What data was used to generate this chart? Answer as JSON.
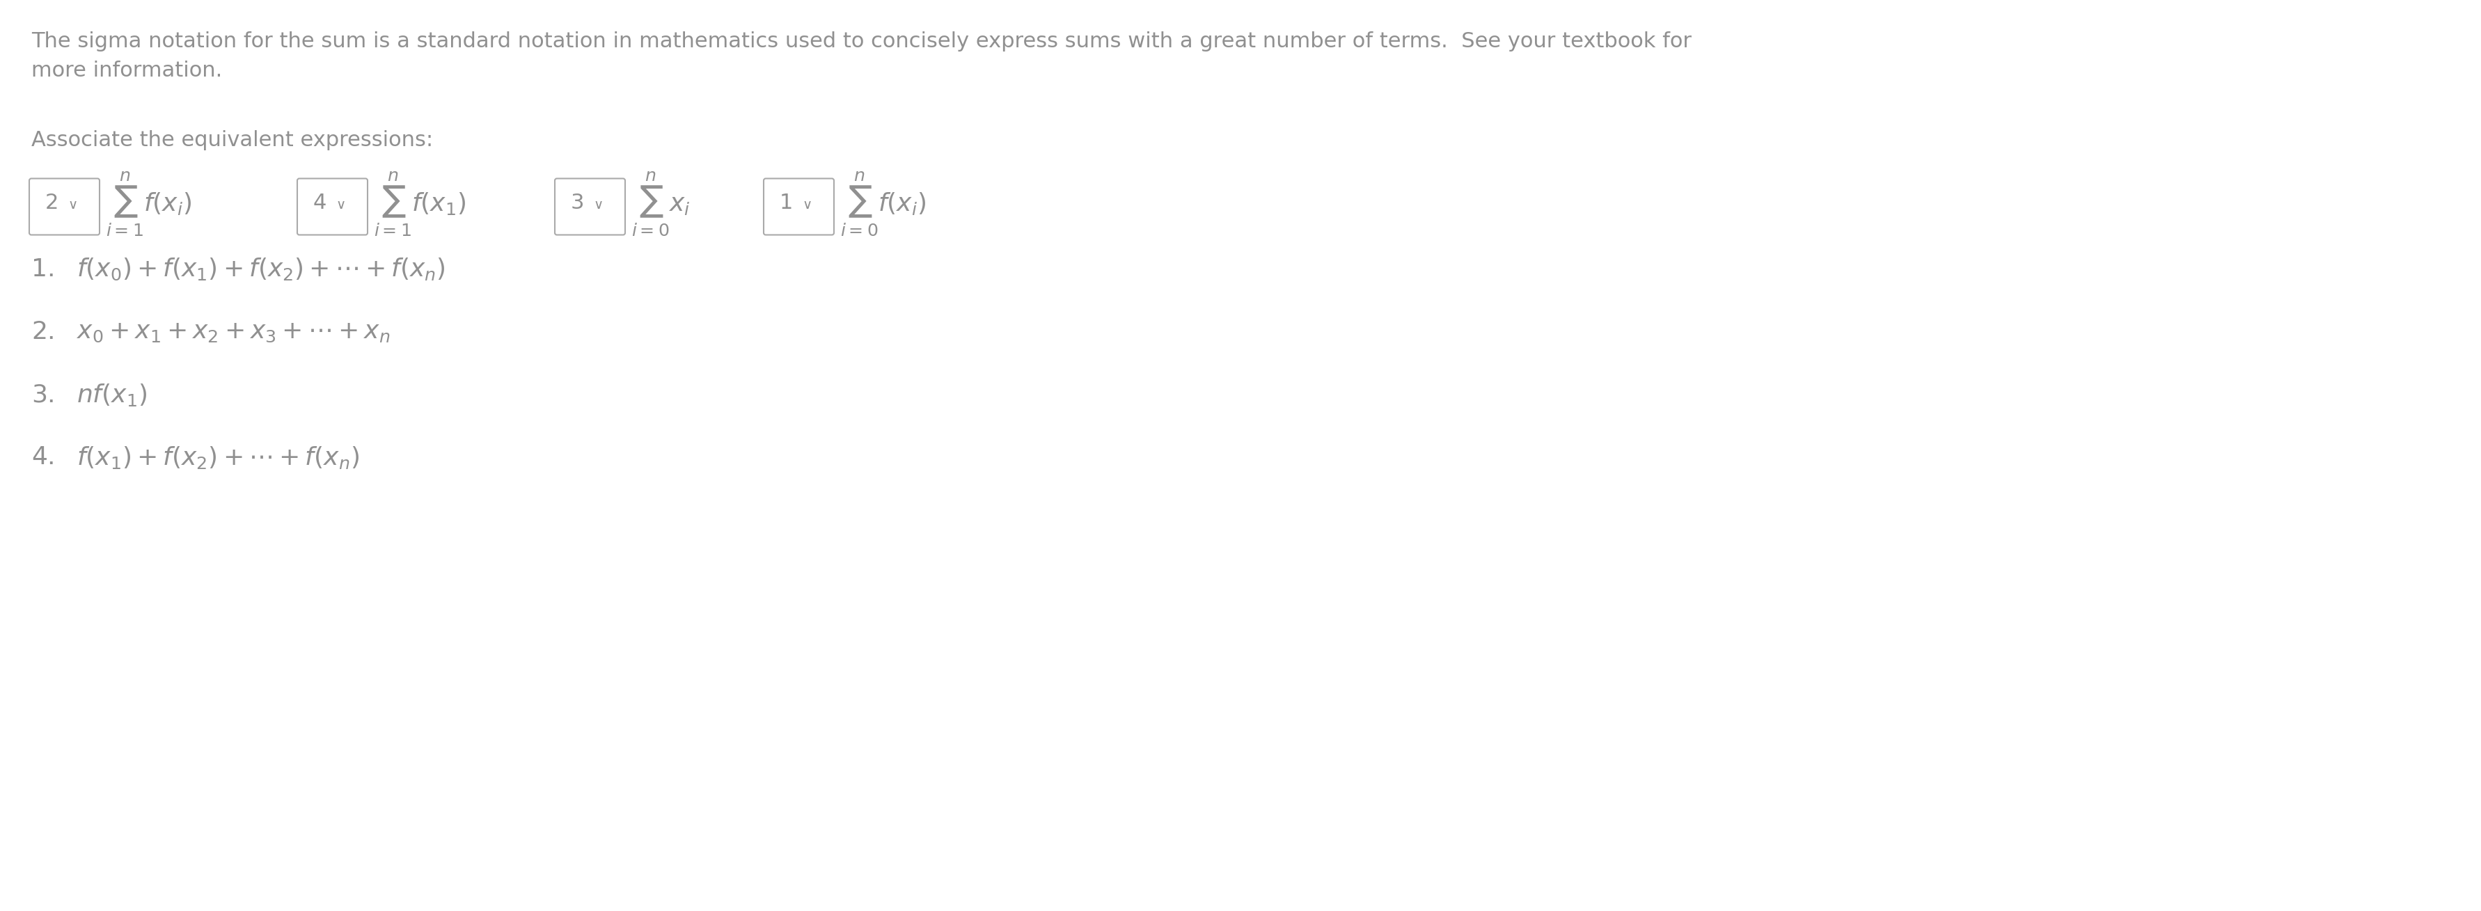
{
  "bg_color": "#ffffff",
  "text_color": "#909090",
  "para1": "The sigma notation for the sum is a standard notation in mathematics used to concisely express sums with a great number of terms.  See your textbook for",
  "para2": "more information.",
  "associate_label": "Associate the equivalent expressions:",
  "font_size_para": 22,
  "font_size_assoc": 22,
  "font_size_box_num": 22,
  "font_size_math": 26,
  "font_size_item_label": 26,
  "font_size_item_math": 26,
  "box_numbers": [
    "2",
    "4",
    "3",
    "1"
  ],
  "box_exprs": [
    "$\\sum_{i=1}^{n} f(x_i)$",
    "$\\sum_{i=1}^{n} f(x_1)$",
    "$\\sum_{i=0}^{n} x_i$",
    "$\\sum_{i=0}^{n} f(x_i)$"
  ],
  "item_labels": [
    "1.",
    "2.",
    "3.",
    "4."
  ],
  "item_exprs": [
    "$f(x_0) + f(x_1) + f(x_2) + \\cdots + f(x_n)$",
    "$x_0 + x_1 + x_2 + x_3 + \\cdots + x_n$",
    "$nf(x_1)$",
    "$f(x_1) + f(x_2) + \\cdots + f(x_n)$"
  ]
}
